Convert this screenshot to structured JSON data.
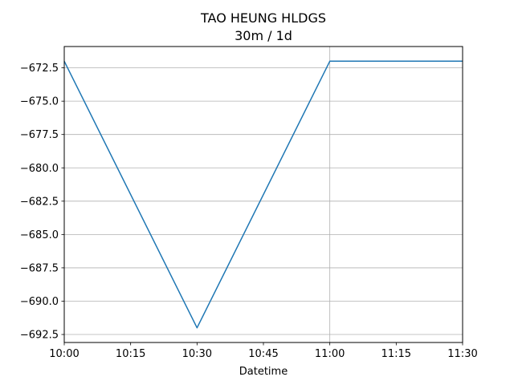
{
  "chart_data": {
    "type": "line",
    "title": "TAO HEUNG HLDGS",
    "subtitle": "30m / 1d",
    "xlabel": "Datetime",
    "ylabel": "",
    "x": [
      "10:00",
      "10:30",
      "11:00",
      "11:30"
    ],
    "series": [
      {
        "values": [
          -672.0,
          -692.0,
          -672.0,
          -672.0
        ],
        "color": "#1f77b4"
      }
    ],
    "xlim": [
      "10:00",
      "11:30"
    ],
    "ylim": [
      -693.1,
      -670.9
    ],
    "x_ticks": [
      "10:00",
      "10:15",
      "10:30",
      "10:45",
      "11:00",
      "11:15",
      "11:30"
    ],
    "y_ticks": [
      "−672.5",
      "−675.0",
      "−677.5",
      "−680.0",
      "−682.5",
      "−685.0",
      "−687.5",
      "−690.0",
      "−692.5"
    ],
    "grid": "horizontal lines at every y tick; single vertical line at 11:00",
    "vertical_grid_at": "11:00"
  }
}
